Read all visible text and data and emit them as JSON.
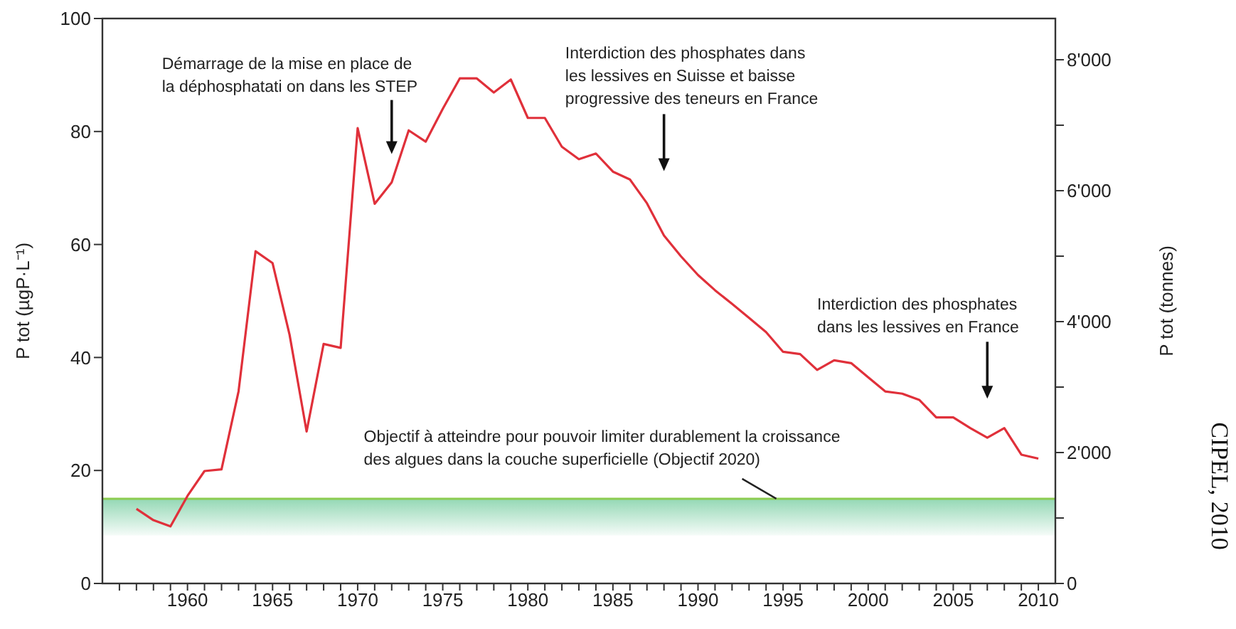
{
  "chart_data": {
    "type": "line",
    "ylabel": "P tot  (µgP·L⁻¹)",
    "y2label": "P tot  (tonnes)",
    "x": [
      1957,
      1958,
      1959,
      1960,
      1961,
      1962,
      1963,
      1964,
      1965,
      1966,
      1967,
      1968,
      1969,
      1970,
      1971,
      1972,
      1973,
      1974,
      1975,
      1976,
      1977,
      1978,
      1979,
      1980,
      1981,
      1982,
      1983,
      1984,
      1985,
      1986,
      1987,
      1988,
      1989,
      1990,
      1991,
      1992,
      1993,
      1994,
      1995,
      1996,
      1997,
      1998,
      1999,
      2000,
      2001,
      2002,
      2003,
      2004,
      2005,
      2006,
      2007,
      2008,
      2009,
      2010
    ],
    "series": [
      {
        "color": "#e0303a",
        "values": [
          13.2,
          11.2,
          10.1,
          15.5,
          19.9,
          20.2,
          34,
          58.8,
          56.7,
          44,
          26.9,
          42.4,
          41.7,
          80.6,
          67.2,
          71,
          80.2,
          78.2,
          84,
          89.4,
          89.4,
          86.9,
          89.2,
          82.4,
          82.4,
          77.3,
          75.1,
          76.1,
          72.9,
          71.5,
          67.3,
          61.6,
          57.9,
          54.6,
          51.9,
          49.5,
          47,
          44.5,
          41,
          40.6,
          37.8,
          39.5,
          39,
          36.5,
          34,
          33.6,
          32.5,
          29.4,
          29.4,
          27.5,
          25.8,
          27.5,
          22.8,
          22.1
        ]
      }
    ],
    "xlim": [
      1955,
      2011
    ],
    "xticks": [
      {
        "value": 1956,
        "label": null
      },
      {
        "value": 1957,
        "label": null
      },
      {
        "value": 1958,
        "label": null
      },
      {
        "value": 1959,
        "label": null
      },
      1960,
      {
        "value": 1961,
        "label": null
      },
      {
        "value": 1962,
        "label": null
      },
      {
        "value": 1963,
        "label": null
      },
      {
        "value": 1964,
        "label": null
      },
      1965,
      {
        "value": 1966,
        "label": null
      },
      {
        "value": 1967,
        "label": null
      },
      {
        "value": 1968,
        "label": null
      },
      {
        "value": 1969,
        "label": null
      },
      1970,
      {
        "value": 1971,
        "label": null
      },
      {
        "value": 1972,
        "label": null
      },
      {
        "value": 1973,
        "label": null
      },
      {
        "value": 1974,
        "label": null
      },
      1975,
      {
        "value": 1976,
        "label": null
      },
      {
        "value": 1977,
        "label": null
      },
      {
        "value": 1978,
        "label": null
      },
      {
        "value": 1979,
        "label": null
      },
      1980,
      {
        "value": 1981,
        "label": null
      },
      {
        "value": 1982,
        "label": null
      },
      {
        "value": 1983,
        "label": null
      },
      {
        "value": 1984,
        "label": null
      },
      1985,
      {
        "value": 1986,
        "label": null
      },
      {
        "value": 1987,
        "label": null
      },
      {
        "value": 1988,
        "label": null
      },
      {
        "value": 1989,
        "label": null
      },
      1990,
      {
        "value": 1991,
        "label": null
      },
      {
        "value": 1992,
        "label": null
      },
      {
        "value": 1993,
        "label": null
      },
      {
        "value": 1994,
        "label": null
      },
      1995,
      {
        "value": 1996,
        "label": null
      },
      {
        "value": 1997,
        "label": null
      },
      {
        "value": 1998,
        "label": null
      },
      {
        "value": 1999,
        "label": null
      },
      2000,
      {
        "value": 2001,
        "label": null
      },
      {
        "value": 2002,
        "label": null
      },
      {
        "value": 2003,
        "label": null
      },
      {
        "value": 2004,
        "label": null
      },
      2005,
      {
        "value": 2006,
        "label": null
      },
      {
        "value": 2007,
        "label": null
      },
      {
        "value": 2008,
        "label": null
      },
      {
        "value": 2009,
        "label": null
      },
      2010
    ],
    "ylim": [
      0,
      100
    ],
    "yticks": [
      0,
      20,
      40,
      60,
      80,
      100
    ],
    "y2lim": [
      0,
      8630
    ],
    "y2ticks": [
      0,
      {
        "value": 1000,
        "label": null
      },
      {
        "value": 2000,
        "label": "2'000"
      },
      {
        "value": 3000,
        "label": null
      },
      {
        "value": 4000,
        "label": "4'000"
      },
      {
        "value": 5000,
        "label": null
      },
      {
        "value": 6000,
        "label": "6'000"
      },
      {
        "value": 7000,
        "label": null
      },
      {
        "value": 8000,
        "label": "8'000"
      }
    ],
    "bands": [
      {
        "axis": "y",
        "from": 8.5,
        "to": 15,
        "color": "#3cb878"
      }
    ],
    "ref_lines": [
      {
        "axis": "y",
        "value": 15,
        "color": "#8ccc50"
      }
    ],
    "annotations": [
      "Démarrage de la mise en place de\nla déphosphatati on  dans  les STEP",
      "Interdiction des phosphates  dans\nles lessives en Suisse et baisse\nprogressive des teneurs en France",
      "Interdiction des phosphates\ndans les lessives en France",
      {
        "text": "Objectif à atteindre pour pouvoir limiter durablement la croissance\ndes algues dans la couche superficielle  (Objectif 2020)",
        "x": 1994.6,
        "y": 15
      },
      "CIPEL, 2010"
    ],
    "grid": false,
    "legend": false,
    "marker": "none",
    "line_style": "solid"
  }
}
